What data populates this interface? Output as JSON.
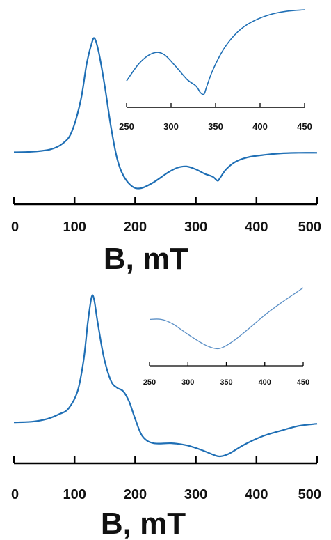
{
  "chart_data": [
    {
      "type": "line",
      "panel": "top",
      "xlabel": "B, mT",
      "xlim": [
        0,
        500
      ],
      "x_ticks": [
        0,
        100,
        200,
        300,
        400,
        500
      ],
      "ylabel": "",
      "yaxis_shown": false,
      "grid": false,
      "series": [
        {
          "points": [
            [
              0,
              0.05
            ],
            [
              30,
              0.06
            ],
            [
              60,
              0.1
            ],
            [
              80,
              0.2
            ],
            [
              95,
              0.4
            ],
            [
              110,
              0.95
            ],
            [
              120,
              1.6
            ],
            [
              128,
              1.95
            ],
            [
              133,
              2.05
            ],
            [
              140,
              1.8
            ],
            [
              150,
              1.2
            ],
            [
              160,
              0.5
            ],
            [
              170,
              -0.05
            ],
            [
              180,
              -0.35
            ],
            [
              195,
              -0.55
            ],
            [
              210,
              -0.58
            ],
            [
              230,
              -0.48
            ],
            [
              255,
              -0.3
            ],
            [
              270,
              -0.22
            ],
            [
              285,
              -0.2
            ],
            [
              300,
              -0.25
            ],
            [
              315,
              -0.33
            ],
            [
              328,
              -0.38
            ],
            [
              336,
              -0.45
            ],
            [
              340,
              -0.4
            ],
            [
              350,
              -0.25
            ],
            [
              365,
              -0.12
            ],
            [
              385,
              -0.04
            ],
            [
              410,
              0
            ],
            [
              440,
              0.03
            ],
            [
              470,
              0.04
            ],
            [
              500,
              0.04
            ]
          ]
        }
      ],
      "inset": {
        "type": "line",
        "xlim": [
          250,
          450
        ],
        "x_ticks": [
          250,
          300,
          350,
          400,
          450
        ],
        "yaxis_shown": false,
        "series": [
          {
            "points": [
              [
                250,
                0
              ],
              [
                265,
                0.25
              ],
              [
                280,
                0.38
              ],
              [
                292,
                0.36
              ],
              [
                305,
                0.2
              ],
              [
                318,
                0.02
              ],
              [
                328,
                -0.07
              ],
              [
                333,
                -0.16
              ],
              [
                337,
                -0.18
              ],
              [
                340,
                -0.08
              ],
              [
                347,
                0.15
              ],
              [
                360,
                0.45
              ],
              [
                375,
                0.67
              ],
              [
                390,
                0.8
              ],
              [
                410,
                0.9
              ],
              [
                430,
                0.95
              ],
              [
                450,
                0.97
              ]
            ]
          }
        ]
      }
    },
    {
      "type": "line",
      "panel": "bottom",
      "xlabel": "B, mT",
      "xlim": [
        0,
        500
      ],
      "x_ticks": [
        0,
        100,
        200,
        300,
        400,
        500
      ],
      "ylabel": "",
      "yaxis_shown": false,
      "grid": false,
      "series": [
        {
          "points": [
            [
              0,
              0
            ],
            [
              30,
              0.01
            ],
            [
              55,
              0.05
            ],
            [
              75,
              0.12
            ],
            [
              90,
              0.2
            ],
            [
              105,
              0.45
            ],
            [
              115,
              0.9
            ],
            [
              122,
              1.45
            ],
            [
              128,
              1.8
            ],
            [
              132,
              1.78
            ],
            [
              138,
              1.45
            ],
            [
              148,
              0.95
            ],
            [
              160,
              0.6
            ],
            [
              170,
              0.5
            ],
            [
              180,
              0.45
            ],
            [
              190,
              0.3
            ],
            [
              200,
              0.05
            ],
            [
              212,
              -0.2
            ],
            [
              230,
              -0.3
            ],
            [
              260,
              -0.3
            ],
            [
              285,
              -0.33
            ],
            [
              310,
              -0.4
            ],
            [
              330,
              -0.47
            ],
            [
              340,
              -0.49
            ],
            [
              355,
              -0.45
            ],
            [
              380,
              -0.32
            ],
            [
              410,
              -0.2
            ],
            [
              440,
              -0.12
            ],
            [
              470,
              -0.05
            ],
            [
              500,
              -0.02
            ]
          ]
        }
      ],
      "inset": {
        "type": "line",
        "xlim": [
          250,
          450
        ],
        "x_ticks": [
          250,
          300,
          350,
          400,
          450
        ],
        "yaxis_shown": false,
        "series": [
          {
            "points": [
              [
                250,
                0
              ],
              [
                265,
                0
              ],
              [
                280,
                -0.05
              ],
              [
                300,
                -0.17
              ],
              [
                320,
                -0.28
              ],
              [
                335,
                -0.33
              ],
              [
                345,
                -0.32
              ],
              [
                360,
                -0.24
              ],
              [
                380,
                -0.1
              ],
              [
                400,
                0.05
              ],
              [
                420,
                0.18
              ],
              [
                440,
                0.3
              ],
              [
                450,
                0.36
              ]
            ]
          }
        ]
      }
    }
  ]
}
